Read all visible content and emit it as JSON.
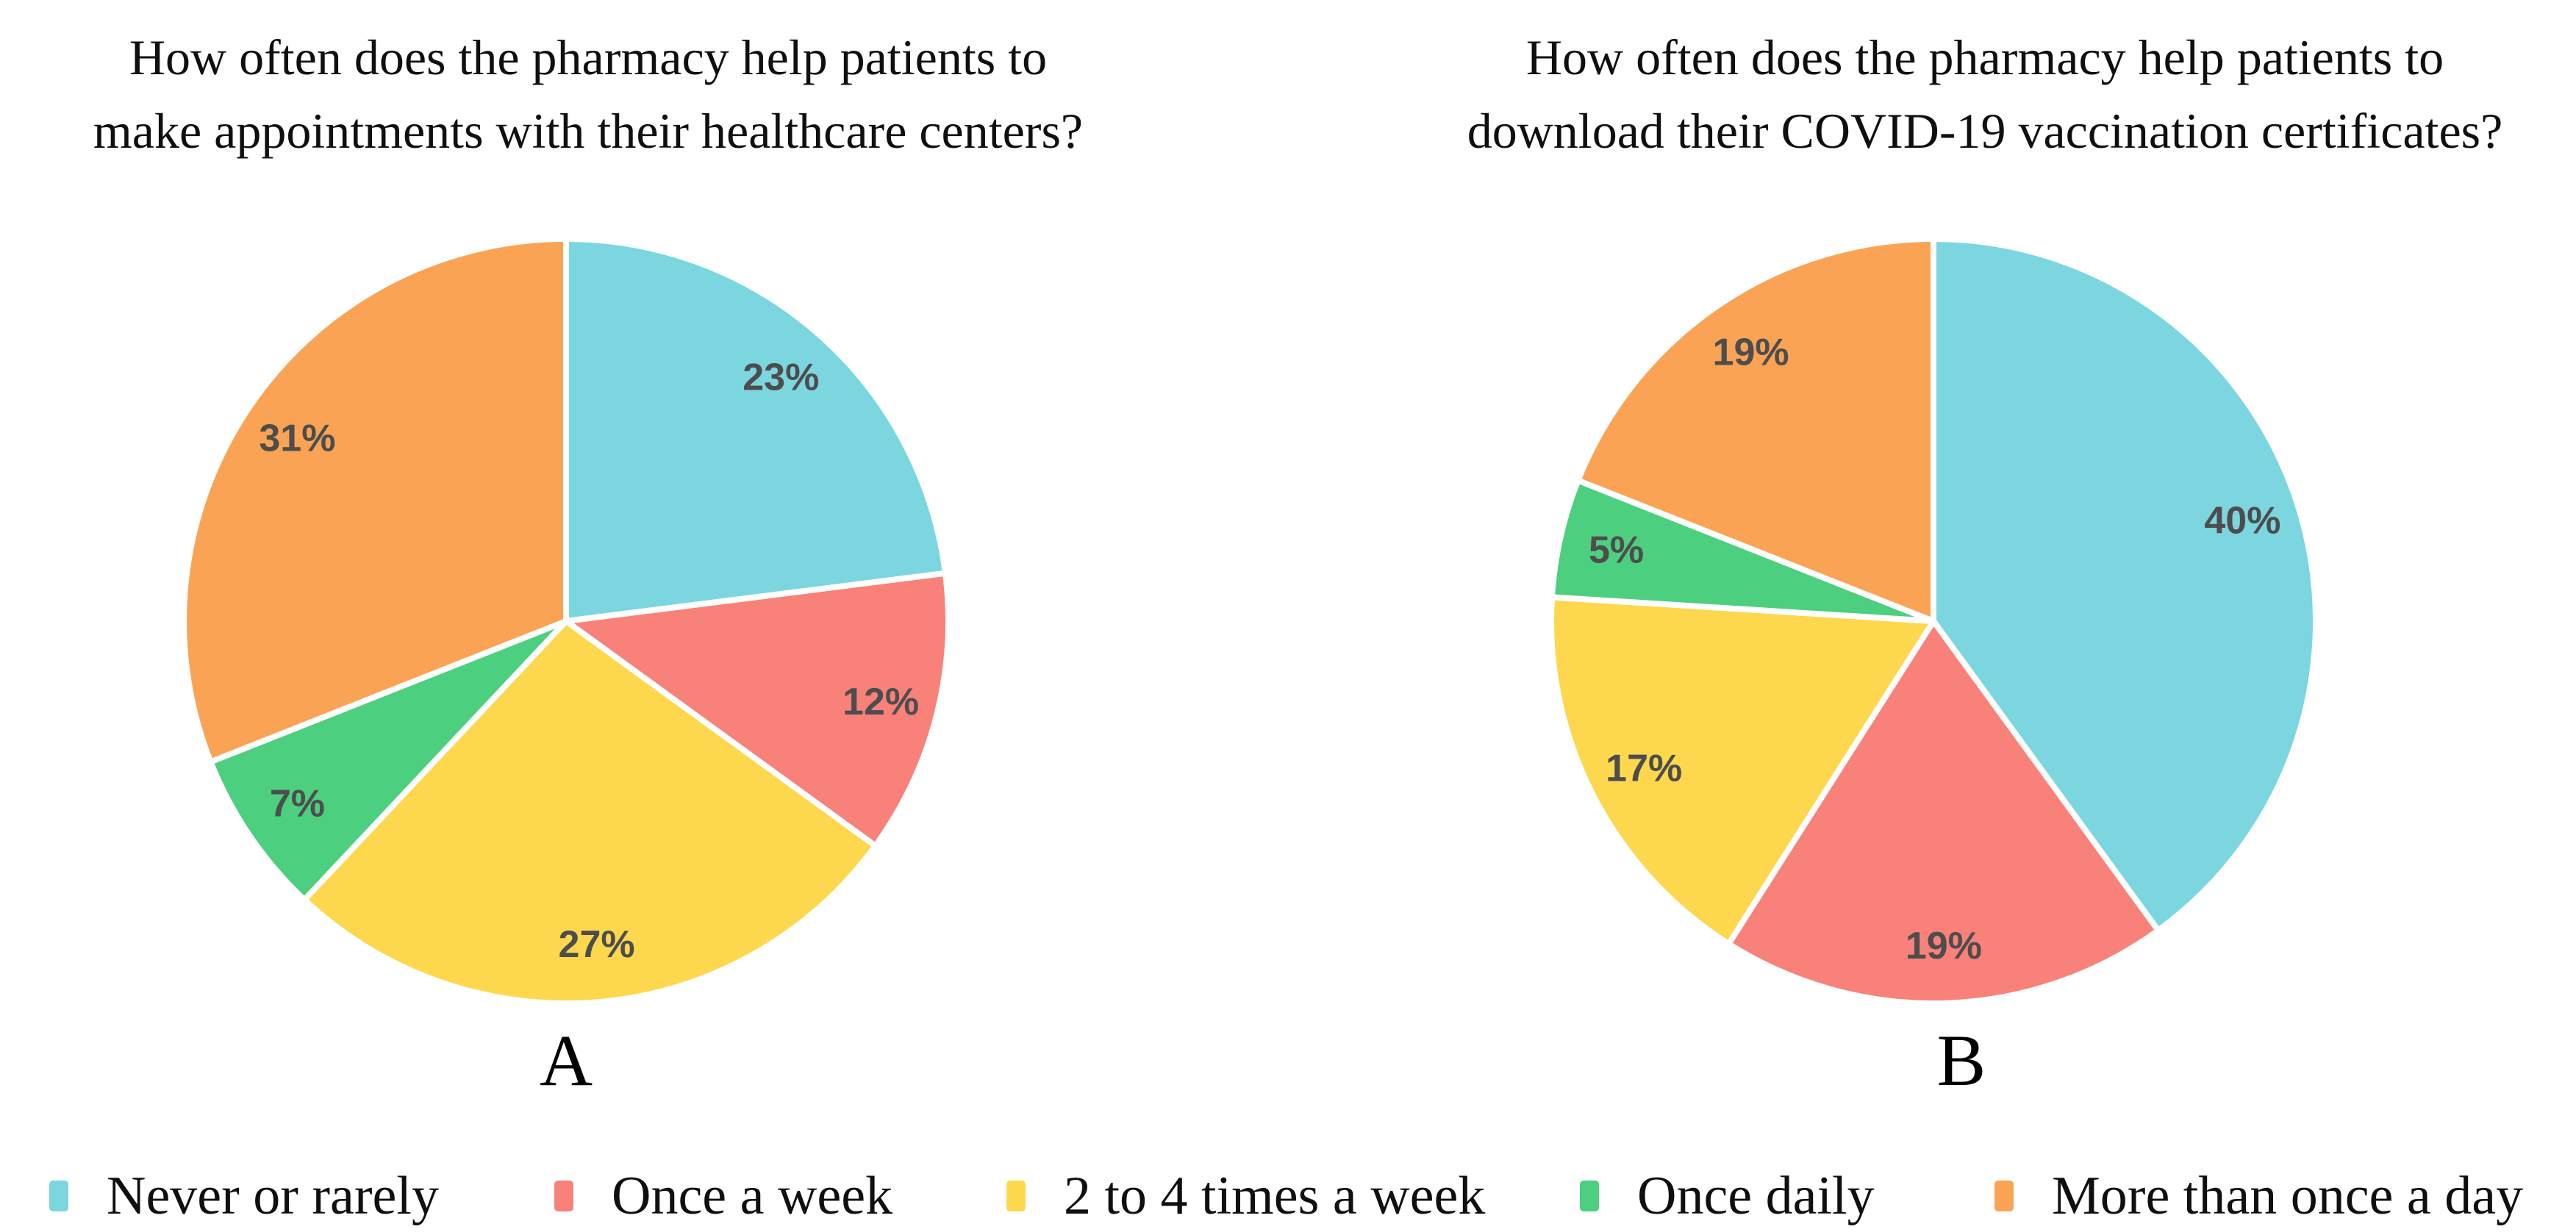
{
  "page": {
    "background": "#ffffff"
  },
  "colors": {
    "series": [
      "#7BD6DF",
      "#F8817A",
      "#FDD84E",
      "#4CCF7E",
      "#FBA354"
    ],
    "slice_gap": "#ffffff",
    "value_label": "#4d4d4d",
    "text": "#0f0f0f"
  },
  "chart_data": [
    {
      "type": "pie",
      "panel_label": "A",
      "title_lines": [
        "How often does the pharmacy help patients to",
        "make appointments with their healthcare centers?"
      ],
      "categories": [
        "Never or rarely",
        "Once a week",
        "2 to 4 times a week",
        "Once daily",
        "More than once a day"
      ],
      "values": [
        23,
        12,
        27,
        7,
        31
      ],
      "value_labels": [
        "23%",
        "12%",
        "27%",
        "7%",
        "31%"
      ],
      "start_angle": "12 o'clock",
      "direction": "clockwise",
      "legend_position": "bottom-shared"
    },
    {
      "type": "pie",
      "panel_label": "B",
      "title_lines": [
        "How often does the pharmacy help patients to",
        "download their COVID-19 vaccination certificates?"
      ],
      "categories": [
        "Never or rarely",
        "Once a week",
        "2 to 4 times a week",
        "Once daily",
        "More than once a day"
      ],
      "values": [
        40,
        19,
        17,
        5,
        19
      ],
      "value_labels": [
        "40%",
        "19%",
        "17%",
        "5%",
        "19%"
      ],
      "start_angle": "12 o'clock",
      "direction": "clockwise",
      "legend_position": "bottom-shared"
    }
  ],
  "legend": {
    "items": [
      {
        "label": "Never or rarely",
        "color": "#7BD6DF"
      },
      {
        "label": "Once a week",
        "color": "#F8817A"
      },
      {
        "label": "2 to 4 times a week",
        "color": "#FDD84E"
      },
      {
        "label": "Once daily",
        "color": "#4CCF7E"
      },
      {
        "label": "More than once a day",
        "color": "#FBA354"
      }
    ]
  }
}
